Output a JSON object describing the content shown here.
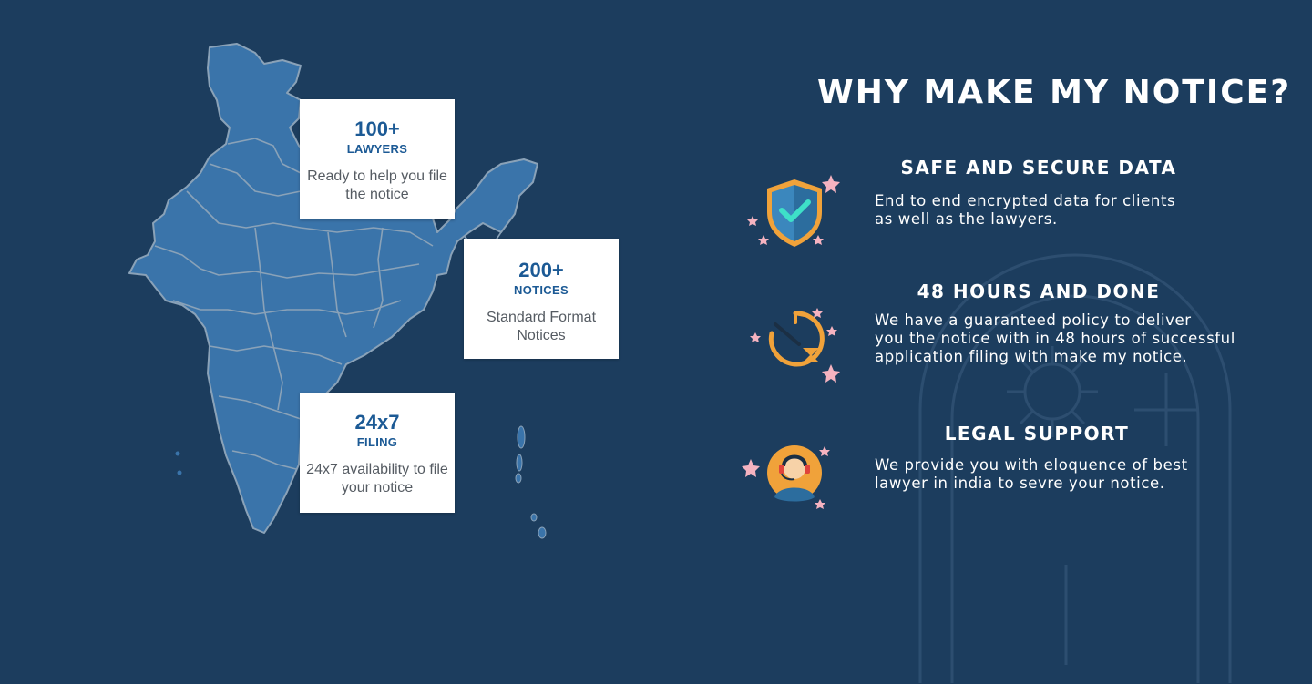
{
  "stats": [
    {
      "number": "100+",
      "unit": "LAWYERS",
      "description": "Ready to help you file the notice"
    },
    {
      "number": "200+",
      "unit": "NOTICES",
      "description": "Standard Format Notices"
    },
    {
      "number": "24x7",
      "unit": "FILING",
      "description": "24x7 availability to file your notice"
    }
  ],
  "section": {
    "heading": "WHY MAKE MY NOTICE?"
  },
  "features": [
    {
      "title": "SAFE AND SECURE DATA",
      "description": "End to end encrypted data for clients\nas well as the lawyers.",
      "icon": "shield-check-icon"
    },
    {
      "title": "48 HOURS AND DONE",
      "description": "We have a guaranteed policy to deliver\nyou the notice with in 48 hours of successful\napplication filing with make my notice.",
      "icon": "clock-hourglass-icon"
    },
    {
      "title": "LEGAL SUPPORT",
      "description": "We provide you with eloquence of best\nlawyer in india to sevre your notice.",
      "icon": "support-agent-icon"
    }
  ],
  "colors": {
    "background": "#1c3d5e",
    "map_fill": "#3a74aa",
    "map_border": "#8aa2b8",
    "accent_blue": "#1c5a95",
    "icon_orange": "#f0a23a",
    "star_pink": "#f5b3c0"
  }
}
